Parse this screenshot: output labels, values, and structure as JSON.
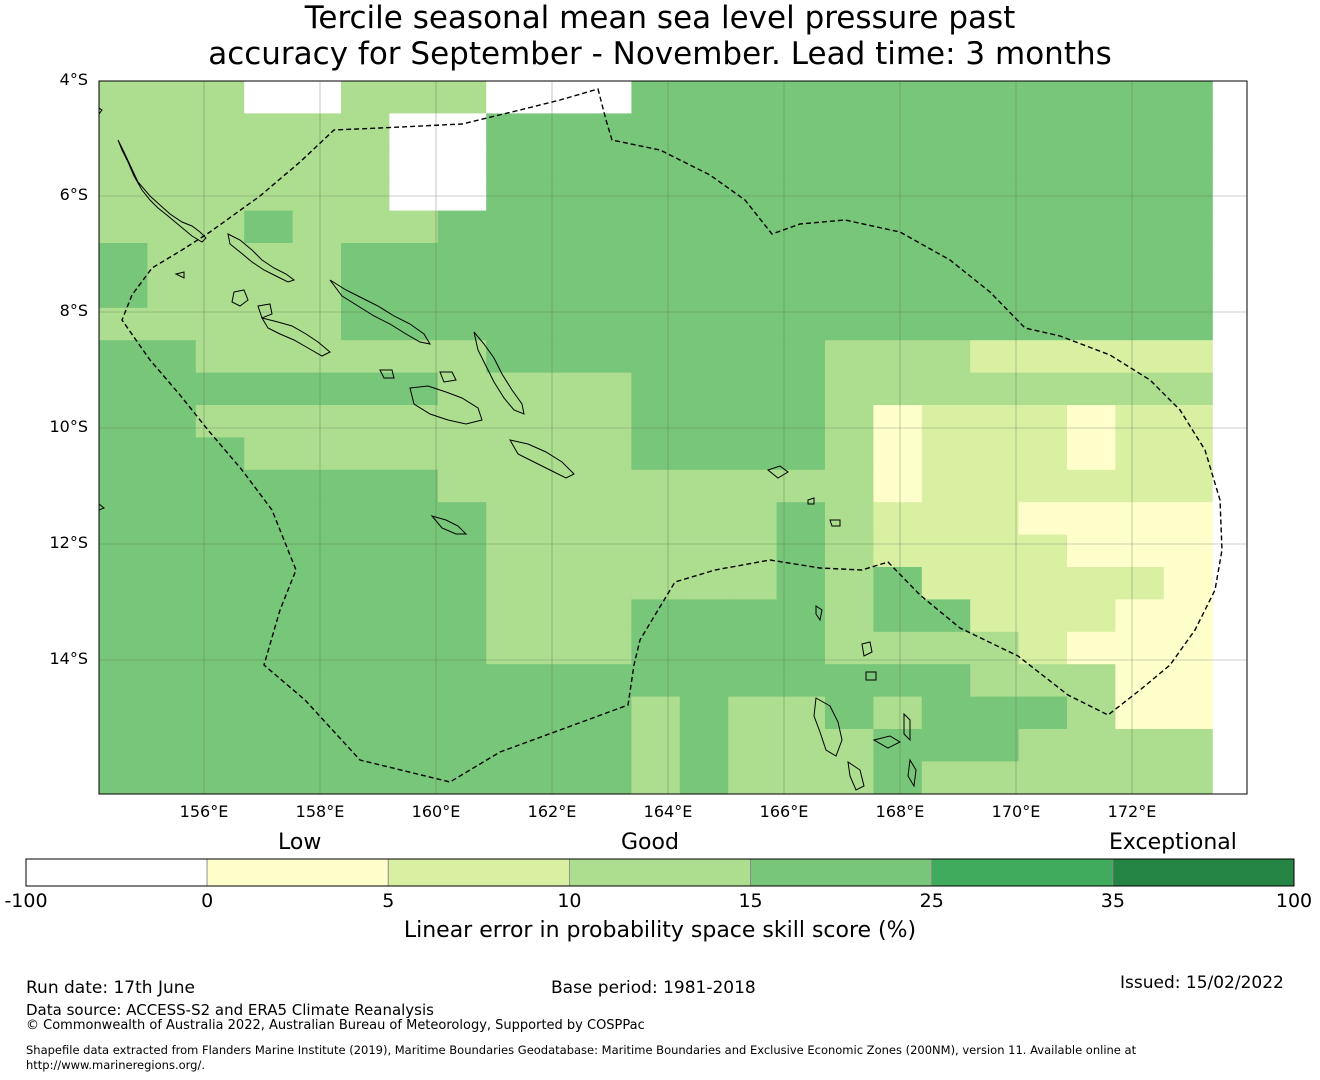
{
  "title": {
    "line1": "Tercile seasonal mean sea level pressure past",
    "line2": "accuracy for September - November. Lead time: 3 months"
  },
  "axes": {
    "lat_labels": [
      "4°S",
      "6°S",
      "8°S",
      "10°S",
      "12°S",
      "14°S"
    ],
    "lon_labels": [
      "156°E",
      "158°E",
      "160°E",
      "162°E",
      "164°E",
      "166°E",
      "168°E",
      "170°E",
      "172°E"
    ],
    "lat_range": [
      -16.3,
      -4.0
    ],
    "lon_range": [
      154.2,
      174.0
    ]
  },
  "colorbar": {
    "categories": [
      "Low",
      "Good",
      "Exceptional"
    ],
    "ticks": [
      "-100",
      "0",
      "5",
      "10",
      "15",
      "25",
      "35",
      "100"
    ],
    "colors": [
      "#ffffff",
      "#ffffcc",
      "#d9f0a3",
      "#addd8e",
      "#78c679",
      "#41ab5d",
      "#238443"
    ],
    "label": "Linear error in probability space skill score (%)"
  },
  "footer": {
    "run_date": "Run date: 17th June",
    "base_period": "Base period: 1981-2018",
    "issued": "Issued: 15/02/2022",
    "data_source": "Data source: ACCESS-S2 and ERA5 Climate Reanalysis",
    "copyright": "© Commonwealth of Australia 2022, Australian Bureau of Meteorology, Supported by COSPPac",
    "shapefile_line1": "Shapefile data extracted from Flanders Marine Institute (2019), Maritime Boundaries Geodatabase: Maritime Boundaries and Exclusive Economic Zones (200NM), version 11. Available online at",
    "shapefile_line2": "http://www.marineregions.org/."
  }
}
